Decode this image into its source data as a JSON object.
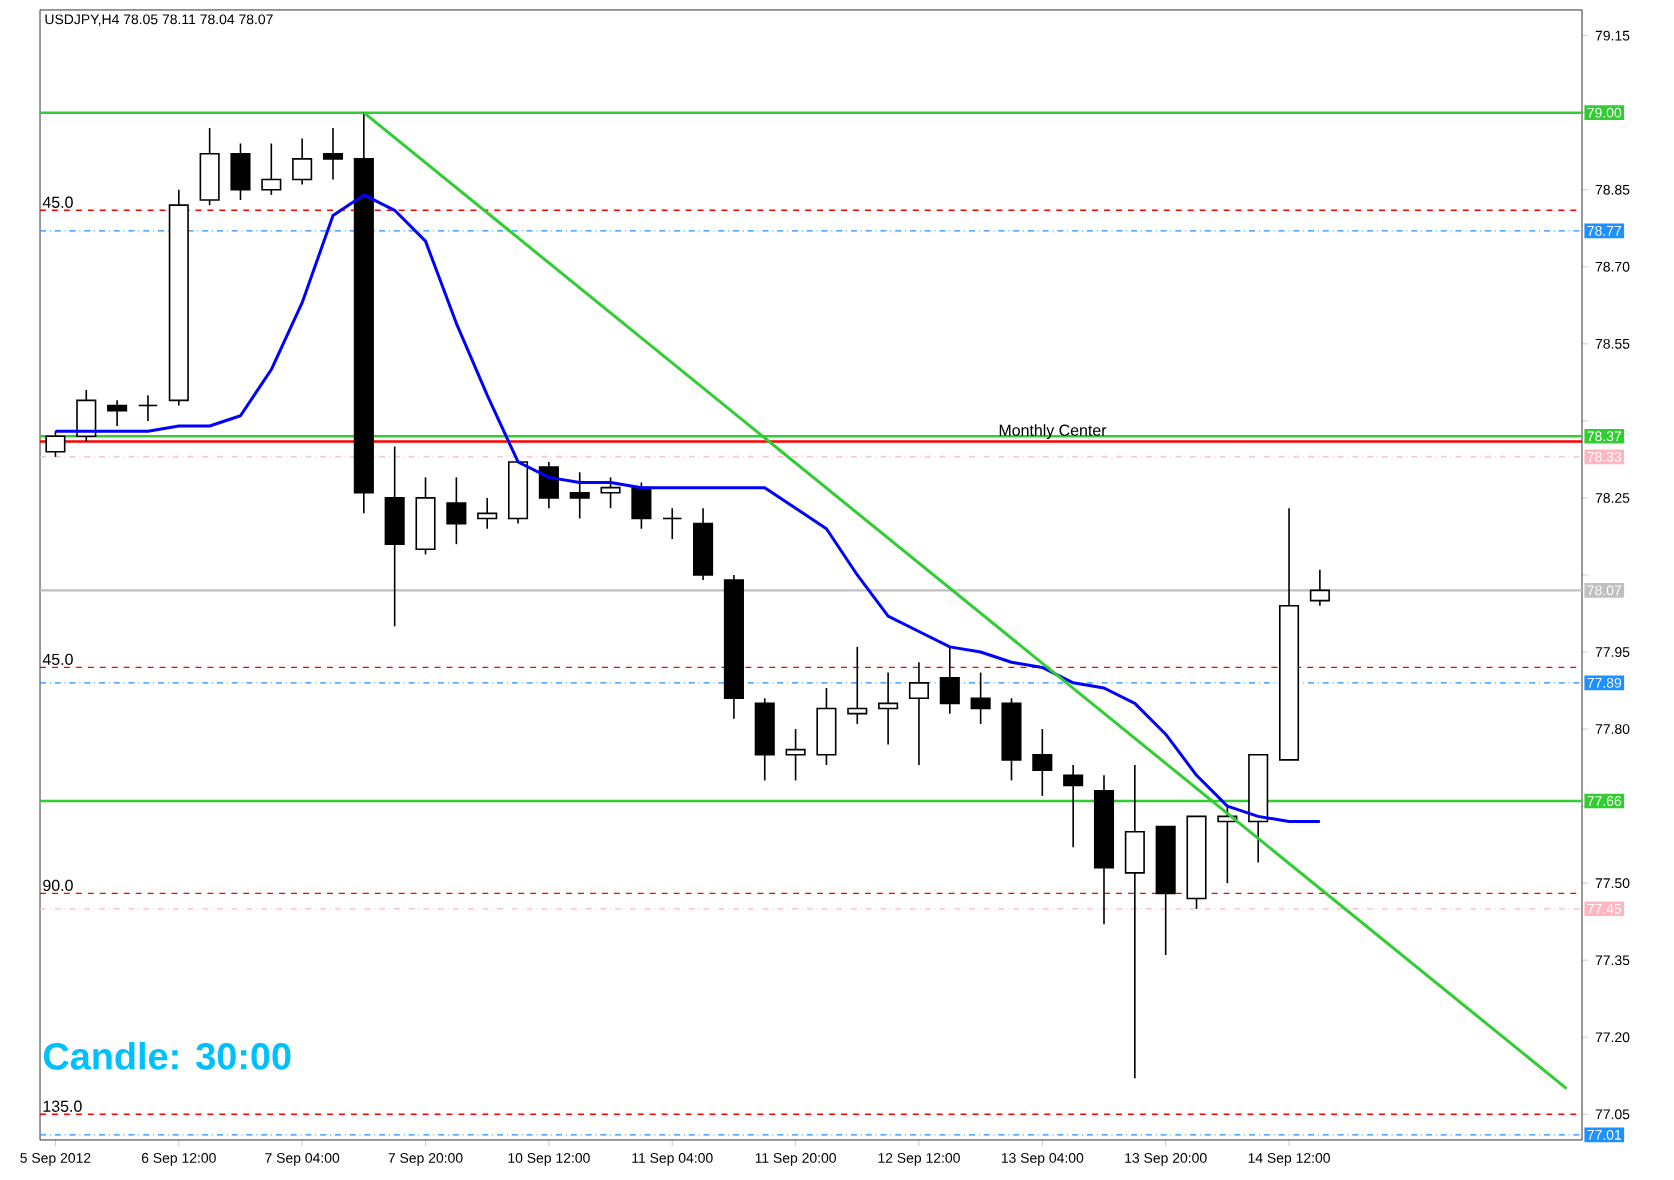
{
  "chart_data": {
    "type": "candlestick",
    "title": "USDJPY,H4  78.05 78.11 78.04 78.07",
    "categories": [
      "5 Sep 2012",
      null,
      null,
      null,
      "6 Sep 12:00",
      null,
      null,
      null,
      "7 Sep 04:00",
      null,
      null,
      null,
      "7 Sep 20:00",
      null,
      null,
      null,
      "10 Sep 12:00",
      null,
      null,
      null,
      "11 Sep 04:00",
      null,
      null,
      null,
      "11 Sep 20:00",
      null,
      null,
      null,
      "12 Sep 12:00",
      null,
      null,
      null,
      "13 Sep 04:00",
      null,
      null,
      null,
      "13 Sep 20:00",
      null,
      null,
      null,
      "14 Sep 12:00",
      null,
      null,
      null,
      null,
      null,
      null,
      null,
      null,
      null
    ],
    "ohlc": [
      [
        78.34,
        78.38,
        78.33,
        78.37
      ],
      [
        78.37,
        78.46,
        78.36,
        78.44
      ],
      [
        78.43,
        78.44,
        78.39,
        78.42
      ],
      [
        78.43,
        78.45,
        78.4,
        78.43
      ],
      [
        78.44,
        78.85,
        78.43,
        78.82
      ],
      [
        78.83,
        78.97,
        78.82,
        78.92
      ],
      [
        78.92,
        78.94,
        78.83,
        78.85
      ],
      [
        78.85,
        78.94,
        78.84,
        78.87
      ],
      [
        78.87,
        78.95,
        78.86,
        78.91
      ],
      [
        78.92,
        78.97,
        78.87,
        78.91
      ],
      [
        78.91,
        79.0,
        78.22,
        78.26
      ],
      [
        78.25,
        78.35,
        78.0,
        78.16
      ],
      [
        78.15,
        78.29,
        78.14,
        78.25
      ],
      [
        78.24,
        78.29,
        78.16,
        78.2
      ],
      [
        78.21,
        78.25,
        78.19,
        78.22
      ],
      [
        78.21,
        78.32,
        78.2,
        78.32
      ],
      [
        78.31,
        78.32,
        78.23,
        78.25
      ],
      [
        78.26,
        78.3,
        78.21,
        78.25
      ],
      [
        78.26,
        78.29,
        78.23,
        78.27
      ],
      [
        78.27,
        78.28,
        78.19,
        78.21
      ],
      [
        78.21,
        78.23,
        78.17,
        78.21
      ],
      [
        78.2,
        78.23,
        78.09,
        78.1
      ],
      [
        78.09,
        78.1,
        77.82,
        77.86
      ],
      [
        77.85,
        77.86,
        77.7,
        77.75
      ],
      [
        77.75,
        77.8,
        77.7,
        77.76
      ],
      [
        77.75,
        77.88,
        77.73,
        77.84
      ],
      [
        77.83,
        77.96,
        77.81,
        77.84
      ],
      [
        77.84,
        77.91,
        77.77,
        77.85
      ],
      [
        77.86,
        77.93,
        77.73,
        77.89
      ],
      [
        77.9,
        77.96,
        77.83,
        77.85
      ],
      [
        77.86,
        77.91,
        77.81,
        77.84
      ],
      [
        77.85,
        77.86,
        77.7,
        77.74
      ],
      [
        77.75,
        77.8,
        77.67,
        77.72
      ],
      [
        77.71,
        77.73,
        77.57,
        77.69
      ],
      [
        77.68,
        77.71,
        77.42,
        77.53
      ],
      [
        77.52,
        77.73,
        77.12,
        77.6
      ],
      [
        77.61,
        77.61,
        77.36,
        77.48
      ],
      [
        77.47,
        77.63,
        77.45,
        77.63
      ],
      [
        77.62,
        77.65,
        77.5,
        77.63
      ],
      [
        77.62,
        77.75,
        77.54,
        77.75
      ],
      [
        77.74,
        78.23,
        77.74,
        78.04
      ],
      [
        78.05,
        78.11,
        78.04,
        78.07
      ],
      null,
      null,
      null,
      null,
      null,
      null,
      null,
      null
    ],
    "series": [
      {
        "type": "line",
        "color": "#0000ff",
        "values": [
          78.38,
          78.38,
          78.38,
          78.38,
          78.39,
          78.39,
          78.41,
          78.5,
          78.63,
          78.8,
          78.84,
          78.81,
          78.75,
          78.59,
          78.45,
          78.32,
          78.29,
          78.28,
          78.28,
          78.27,
          78.27,
          78.27,
          78.27,
          78.27,
          78.23,
          78.19,
          78.1,
          78.02,
          77.99,
          77.96,
          77.95,
          77.93,
          77.92,
          77.89,
          77.88,
          77.85,
          77.79,
          77.71,
          77.65,
          77.63,
          77.62,
          77.62,
          null,
          null,
          null,
          null,
          null,
          null,
          null,
          null
        ]
      },
      {
        "type": "line",
        "color": "#32cd32",
        "values": [
          null,
          null,
          null,
          null,
          null,
          null,
          null,
          null,
          null,
          null,
          79.0,
          null,
          null,
          null,
          null,
          null,
          null,
          null,
          null,
          null,
          null,
          null,
          null,
          null,
          null,
          null,
          null,
          null,
          null,
          null,
          null,
          null,
          null,
          null,
          null,
          null,
          null,
          null,
          null,
          null,
          null,
          null,
          null,
          null,
          null,
          null,
          null,
          null,
          null,
          77.1
        ]
      }
    ],
    "ylim": [
      77.0,
      79.2
    ],
    "yticks": [
      {
        "value": 77.05,
        "label": "77.05"
      },
      {
        "value": 77.2,
        "label": "77.20"
      },
      {
        "value": 77.35,
        "label": "77.35"
      },
      {
        "value": 77.5,
        "label": "77.50"
      },
      {
        "value": 77.65,
        "label": null
      },
      {
        "value": 77.8,
        "label": "77.80"
      },
      {
        "value": 77.95,
        "label": "77.95"
      },
      {
        "value": 78.1,
        "label": null
      },
      {
        "value": 78.25,
        "label": "78.25"
      },
      {
        "value": 78.4,
        "label": null
      },
      {
        "value": 78.55,
        "label": "78.55"
      },
      {
        "value": 78.7,
        "label": "78.70"
      },
      {
        "value": 78.85,
        "label": "78.85"
      },
      {
        "value": 79.0,
        "label": null
      },
      {
        "value": 79.15,
        "label": "79.15"
      }
    ],
    "ref_lines": [
      {
        "axis": "y",
        "value": 79.0,
        "label": "79.00",
        "color": "#32cd32",
        "line_style": "solid"
      },
      {
        "axis": "y",
        "value": 78.81,
        "color": "#ff0000",
        "line_style": "dashed"
      },
      {
        "axis": "y",
        "value": 78.77,
        "label": "78.77",
        "color": "#1e90ff",
        "line_style": "dashdot"
      },
      {
        "axis": "y",
        "value": 78.37,
        "label": "78.37",
        "color": "#32cd32",
        "line_style": "solid"
      },
      {
        "axis": "y",
        "value": 78.36,
        "label": "Monthly Center",
        "color": "#ff0000",
        "line_style": "solid"
      },
      {
        "axis": "y",
        "value": 78.33,
        "label": "78.33",
        "color": "#ffb6c1",
        "line_style": "dashdot"
      },
      {
        "axis": "y",
        "value": 78.07,
        "label": "78.07",
        "color": "#c0c0c0",
        "line_style": "solid"
      },
      {
        "axis": "y",
        "value": 77.92,
        "color": "#ff0000",
        "line_style": "dashed"
      },
      {
        "axis": "y",
        "value": 77.89,
        "label": "77.89",
        "color": "#1e90ff",
        "line_style": "dashdot"
      },
      {
        "axis": "y",
        "value": 77.66,
        "label": "77.66",
        "color": "#32cd32",
        "line_style": "solid"
      },
      {
        "axis": "y",
        "value": 77.48,
        "color": "#ff0000",
        "line_style": "dashed"
      },
      {
        "axis": "y",
        "value": 77.45,
        "label": "77.45",
        "color": "#ffb6c1",
        "line_style": "dashdot"
      },
      {
        "axis": "y",
        "value": 77.05,
        "color": "#ff0000",
        "line_style": "dashed"
      },
      {
        "axis": "y",
        "value": 77.01,
        "label": "77.01",
        "color": "#1e90ff",
        "line_style": "dashdot"
      }
    ],
    "annotations": [
      "Candle:  30:00",
      {
        "text": "45.0",
        "y": 78.81
      },
      {
        "text": "45.0",
        "y": 77.92
      },
      {
        "text": "90.0",
        "y": 77.48
      },
      {
        "text": "135.0",
        "y": 77.05
      }
    ]
  }
}
